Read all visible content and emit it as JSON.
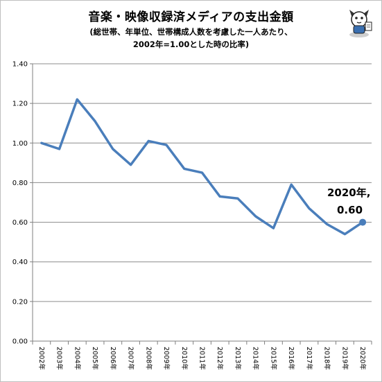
{
  "title": "音楽・映像収録済メディアの支出金額",
  "subtitle_line1": "(総世帯、年単位、世帯構成人数を考慮した一人あたり、",
  "subtitle_line2": "2002年=1.00とした時の比率)",
  "mascot_icon": "cartoon-cat-mascot-icon",
  "annotation": {
    "line1": "2020年,",
    "line2": "0.60"
  },
  "colors": {
    "line": "#4a7ebb",
    "grid": "#8c8c8c",
    "axis": "#7f7f7f"
  },
  "chart_data": {
    "type": "line",
    "title": "音楽・映像収録済メディアの支出金額",
    "categories": [
      "2002年",
      "2003年",
      "2004年",
      "2005年",
      "2006年",
      "2007年",
      "2008年",
      "2009年",
      "2010年",
      "2011年",
      "2012年",
      "2013年",
      "2014年",
      "2015年",
      "2016年",
      "2017年",
      "2018年",
      "2019年",
      "2020年"
    ],
    "values": [
      1.0,
      0.97,
      1.22,
      1.11,
      0.97,
      0.89,
      1.01,
      0.99,
      0.87,
      0.85,
      0.73,
      0.72,
      0.63,
      0.57,
      0.79,
      0.67,
      0.59,
      0.54,
      0.6
    ],
    "ylim": [
      0,
      1.4
    ],
    "yticks": [
      0,
      0.2,
      0.4,
      0.6,
      0.8,
      1.0,
      1.2,
      1.4
    ],
    "ytick_labels": [
      "0.00",
      "0.20",
      "0.40",
      "0.60",
      "0.80",
      "1.00",
      "1.20",
      "1.40"
    ],
    "grid": true,
    "legend": "none",
    "highlight_last_point": true
  }
}
